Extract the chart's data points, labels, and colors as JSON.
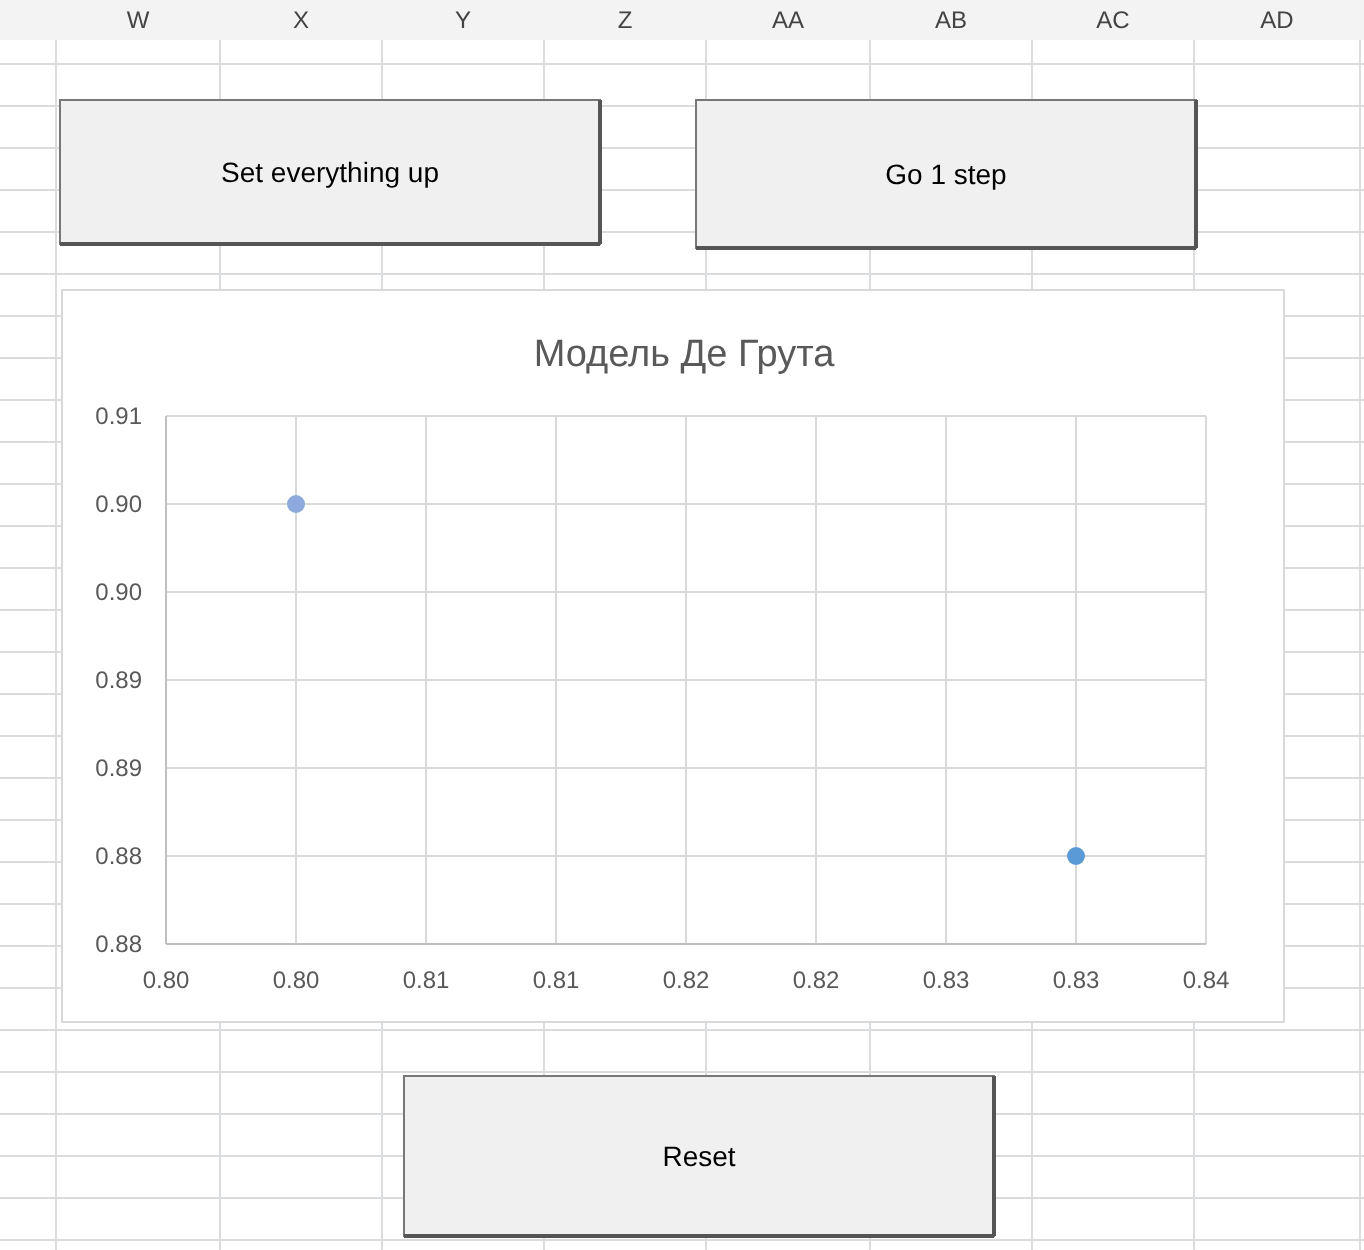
{
  "chart_data": {
    "type": "scatter",
    "title": "Модель Де Грута",
    "x": [
      0.8,
      0.83
    ],
    "series": [
      {
        "values": [
          0.9,
          0.88
        ],
        "colors": [
          "#8eaadc",
          "#5b9bd5"
        ]
      }
    ],
    "xlim": [
      0.795,
      0.835
    ],
    "xticks": [
      {
        "value": 0.795,
        "label": "0.80"
      },
      {
        "value": 0.8,
        "label": "0.80"
      },
      {
        "value": 0.805,
        "label": "0.81"
      },
      {
        "value": 0.81,
        "label": "0.81"
      },
      {
        "value": 0.815,
        "label": "0.82"
      },
      {
        "value": 0.82,
        "label": "0.82"
      },
      {
        "value": 0.825,
        "label": "0.83"
      },
      {
        "value": 0.83,
        "label": "0.83"
      },
      {
        "value": 0.835,
        "label": "0.84"
      }
    ],
    "ylim": [
      0.875,
      0.905
    ],
    "yticks": [
      {
        "value": 0.875,
        "label": "0.88"
      },
      {
        "value": 0.88,
        "label": "0.88"
      },
      {
        "value": 0.885,
        "label": "0.89"
      },
      {
        "value": 0.89,
        "label": "0.89"
      },
      {
        "value": 0.895,
        "label": "0.90"
      },
      {
        "value": 0.9,
        "label": "0.90"
      },
      {
        "value": 0.905,
        "label": "0.91"
      }
    ],
    "grid": true,
    "marker": "circle",
    "annotations": [
      "W",
      "X",
      "Y",
      "Z",
      "AA",
      "AB",
      "AC",
      "AD",
      "Set everything up",
      "Go 1 step",
      "Reset"
    ]
  }
}
